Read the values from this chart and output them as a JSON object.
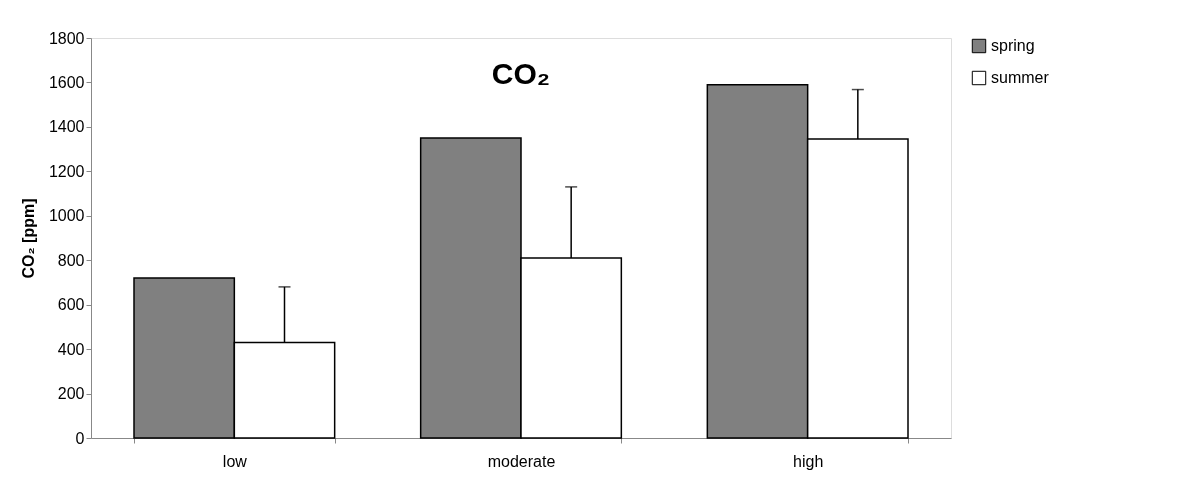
{
  "chart_data": {
    "type": "bar",
    "title": "CO₂",
    "ylabel": "CO₂ [ppm]",
    "categories": [
      "low",
      "moderate",
      "high"
    ],
    "series": [
      {
        "name": "spring",
        "color": "#808080",
        "values": [
          720,
          1350,
          1590
        ]
      },
      {
        "name": "summer",
        "color": "#ffffff",
        "values": [
          430,
          810,
          1345
        ],
        "errors": [
          [
            430,
            680
          ],
          [
            810,
            1130
          ],
          [
            1345,
            1568
          ]
        ]
      }
    ],
    "ylim": [
      0,
      1800
    ],
    "yticks": [
      0,
      200,
      400,
      600,
      800,
      1000,
      1200,
      1400,
      1600,
      1800
    ],
    "legend": "right"
  }
}
